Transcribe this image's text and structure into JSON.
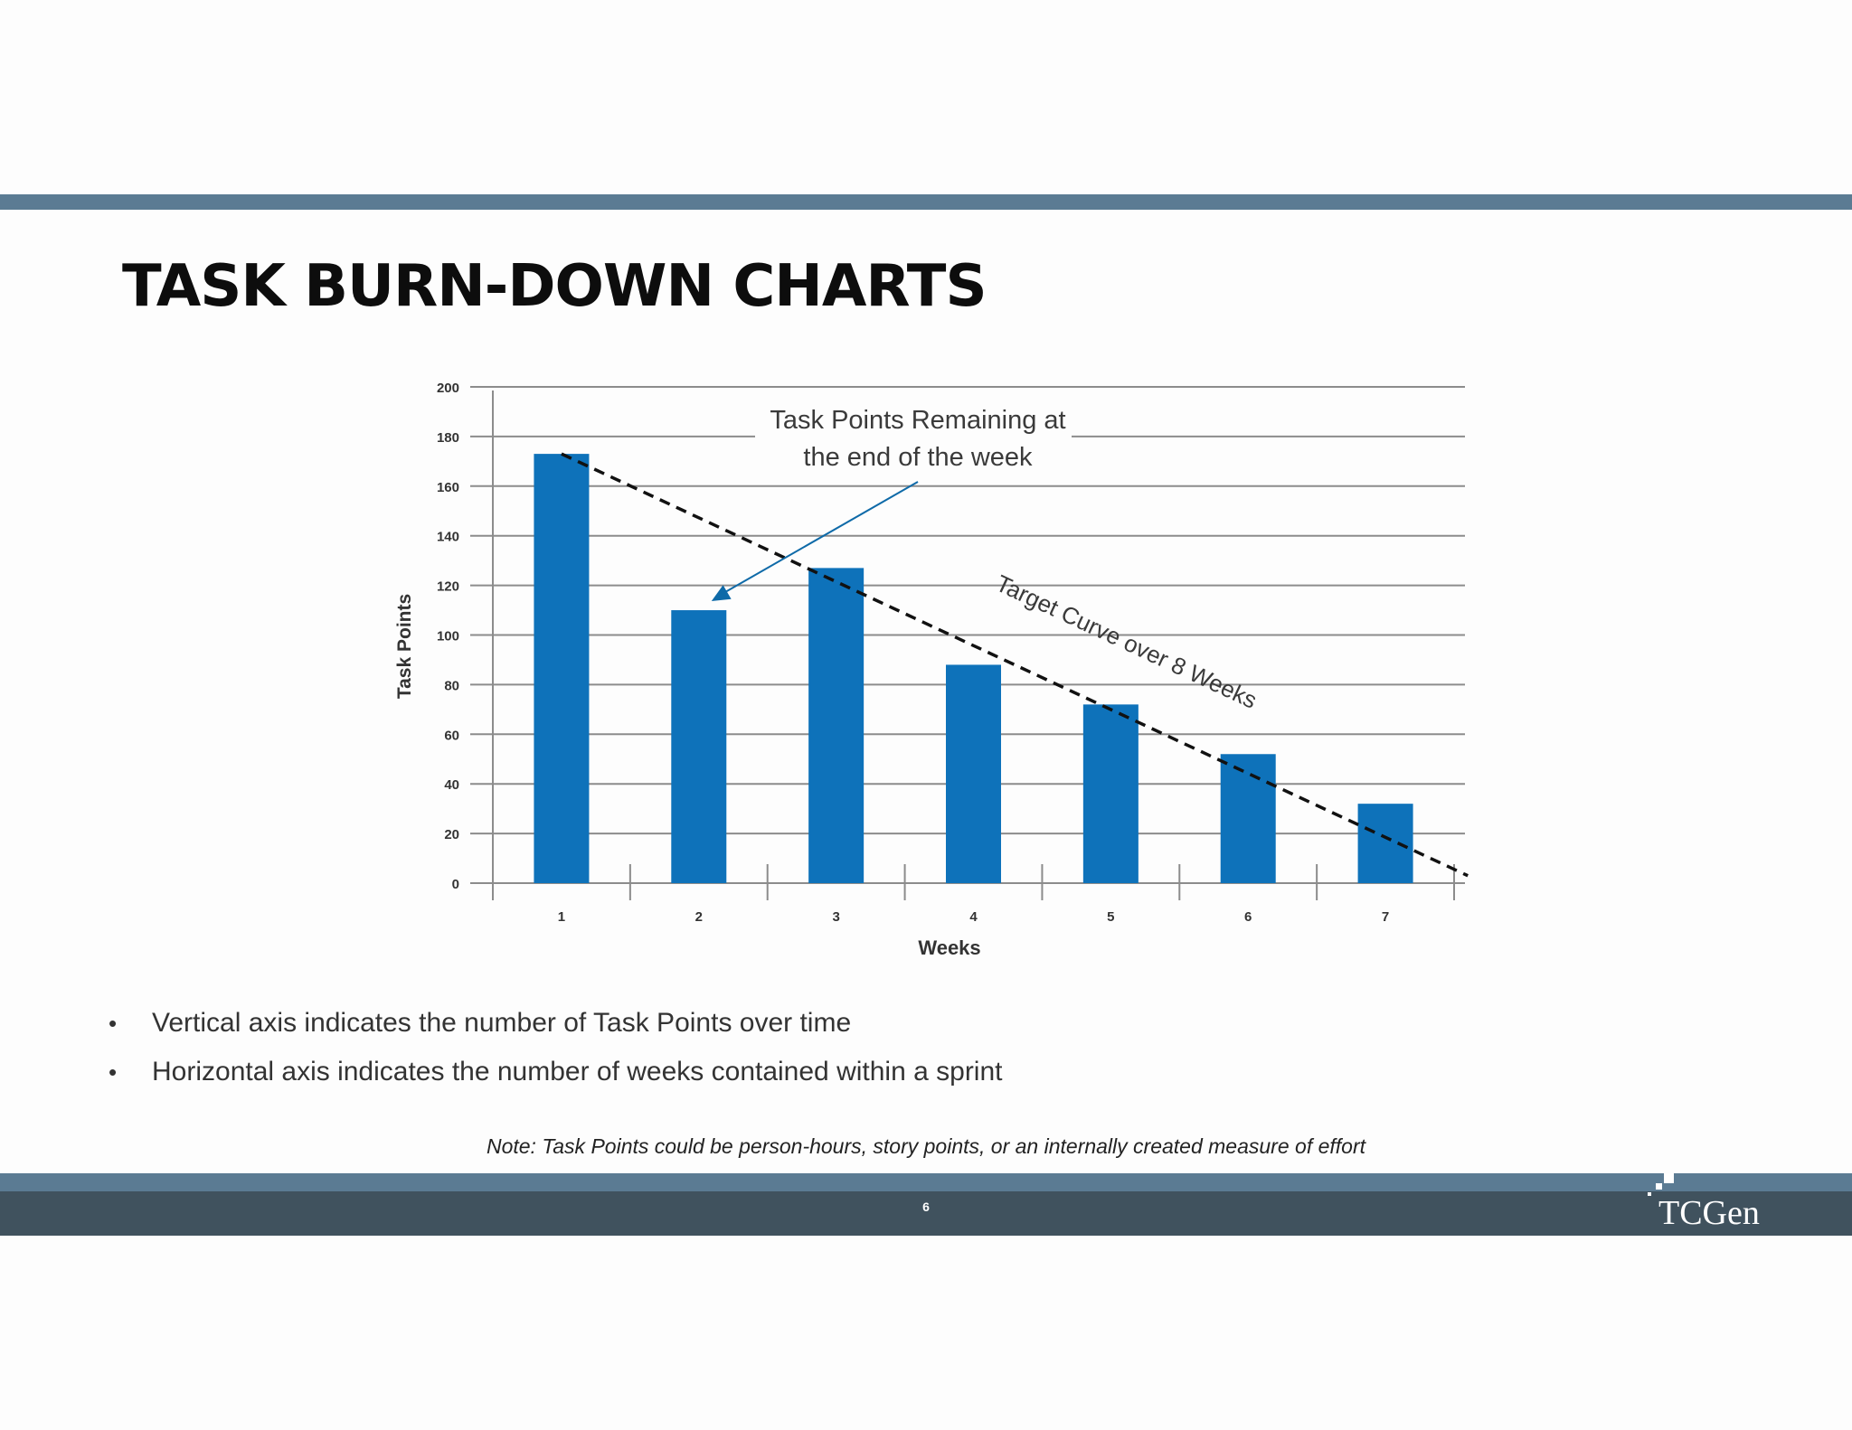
{
  "slide": {
    "title": "TASK BURN-DOWN CHARTS",
    "bullets": [
      "Vertical axis indicates the number of Task Points over time",
      "Horizontal axis indicates the number of weeks contained within a sprint"
    ],
    "note": "Note: Task Points could be person-hours, story points, or an internally created measure of effort",
    "page_number": "6",
    "logo_text": "TCGen"
  },
  "colors": {
    "bar": "#0e72ba",
    "grid": "#8c8c8c",
    "arrow": "#0e6aa8",
    "target_line": "#111111",
    "header_bar": "#5b7b93",
    "footer_bar": "#40525e"
  },
  "chart_data": {
    "type": "bar",
    "categories": [
      "1",
      "2",
      "3",
      "4",
      "5",
      "6",
      "7"
    ],
    "values": [
      173,
      110,
      127,
      88,
      72,
      52,
      32
    ],
    "xlabel": "Weeks",
    "ylabel": "Task Points",
    "ylim": [
      0,
      200
    ],
    "yticks": [
      "0",
      "20",
      "40",
      "60",
      "80",
      "100",
      "120",
      "140",
      "160",
      "180",
      "200"
    ],
    "grid": true,
    "annotations": {
      "callout_line1": "Task Points Remaining at",
      "callout_line2": "the end of the week",
      "target_label": "Target Curve over 8 Weeks"
    },
    "target_curve": {
      "x": [
        1,
        7.6
      ],
      "y": [
        173,
        3
      ]
    }
  }
}
